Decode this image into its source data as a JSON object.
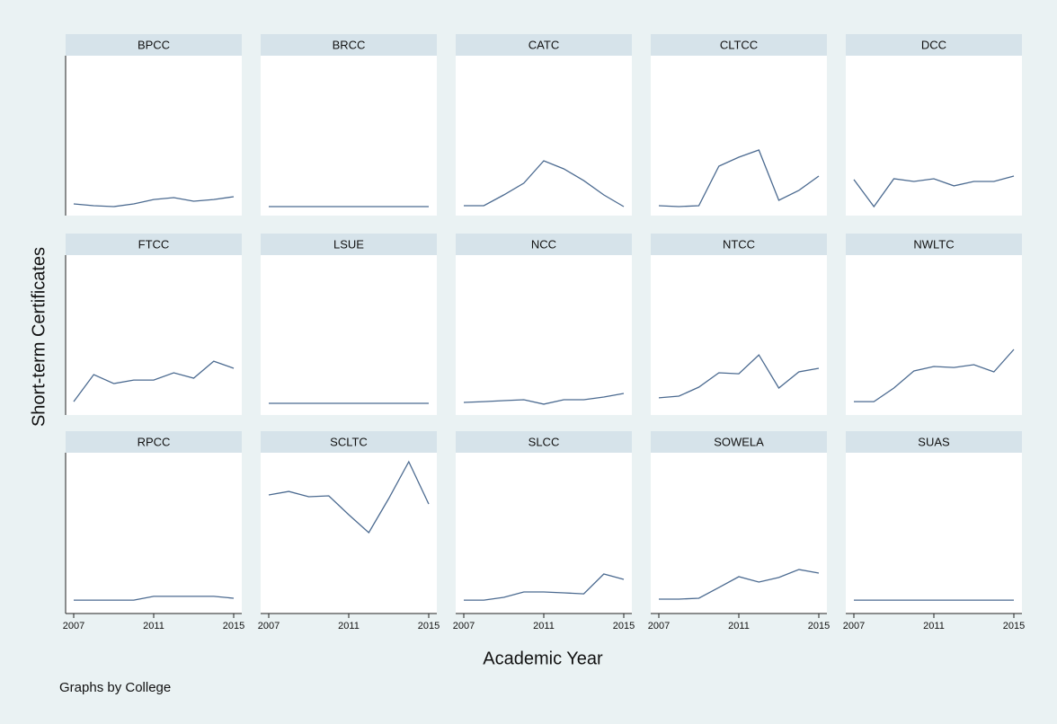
{
  "chart_data": {
    "type": "line",
    "x_label": "Academic Year",
    "y_label": "Short-term Certificates",
    "note": "Graphs by College",
    "x": [
      2007,
      2008,
      2009,
      2010,
      2011,
      2012,
      2013,
      2014,
      2015
    ],
    "xlim": [
      2007,
      2015
    ],
    "xticks": [
      2007,
      2011,
      2015
    ],
    "ylim": [
      0,
      100
    ],
    "color": "#4b6a90",
    "series": [
      {
        "name": "BPCC",
        "values": [
          1.9,
          0.6,
          0,
          1.9,
          5,
          6.3,
          3.8,
          5,
          6.9
        ]
      },
      {
        "name": "BRCC",
        "values": [
          0,
          0,
          0,
          0,
          0,
          0,
          0,
          0,
          0
        ]
      },
      {
        "name": "CATC",
        "values": [
          0.6,
          0.6,
          8.2,
          16.4,
          32.1,
          26.4,
          18.2,
          8.2,
          0
        ]
      },
      {
        "name": "CLTCC",
        "values": [
          0.6,
          0,
          0.6,
          28.3,
          34.6,
          39.6,
          4.4,
          11.3,
          21.4
        ]
      },
      {
        "name": "DCC",
        "values": [
          18.9,
          0,
          19.5,
          17.6,
          19.5,
          14.5,
          17.6,
          17.6,
          21.4
        ]
      },
      {
        "name": "FTCC",
        "values": [
          3.1,
          22,
          15.7,
          18.2,
          18.2,
          23.3,
          19.5,
          31.4,
          26.4
        ]
      },
      {
        "name": "LSUE",
        "values": [
          1.9,
          1.9,
          1.9,
          1.9,
          1.9,
          1.9,
          1.9,
          1.9,
          1.9
        ]
      },
      {
        "name": "NCC",
        "values": [
          2.5,
          3.1,
          3.8,
          4.4,
          1.3,
          4.4,
          4.4,
          6.3,
          8.8
        ]
      },
      {
        "name": "NTCC",
        "values": [
          5.7,
          6.9,
          13.2,
          23.3,
          22.6,
          35.8,
          12.6,
          23.9,
          26.4
        ]
      },
      {
        "name": "NWLTC",
        "values": [
          3.1,
          3.1,
          12.6,
          24.5,
          27.7,
          27,
          28.9,
          23.9,
          39.6
        ]
      },
      {
        "name": "RPCC",
        "values": [
          3.1,
          3.1,
          3.1,
          3.1,
          5.7,
          5.7,
          5.7,
          5.7,
          4.4
        ]
      },
      {
        "name": "SCLTC",
        "values": [
          76.7,
          79.2,
          75.5,
          76.1,
          62.9,
          50.3,
          74.2,
          100,
          70.4
        ]
      },
      {
        "name": "SLCC",
        "values": [
          3.1,
          3.1,
          5,
          8.8,
          8.8,
          8.2,
          7.5,
          21.4,
          17.6
        ]
      },
      {
        "name": "SOWELA",
        "values": [
          3.8,
          3.8,
          4.4,
          11.9,
          19.5,
          15.7,
          18.9,
          24.5,
          22
        ]
      },
      {
        "name": "SUAS",
        "values": [
          3.1,
          3.1,
          3.1,
          3.1,
          3.1,
          3.1,
          3.1,
          3.1,
          3.1
        ]
      }
    ]
  }
}
